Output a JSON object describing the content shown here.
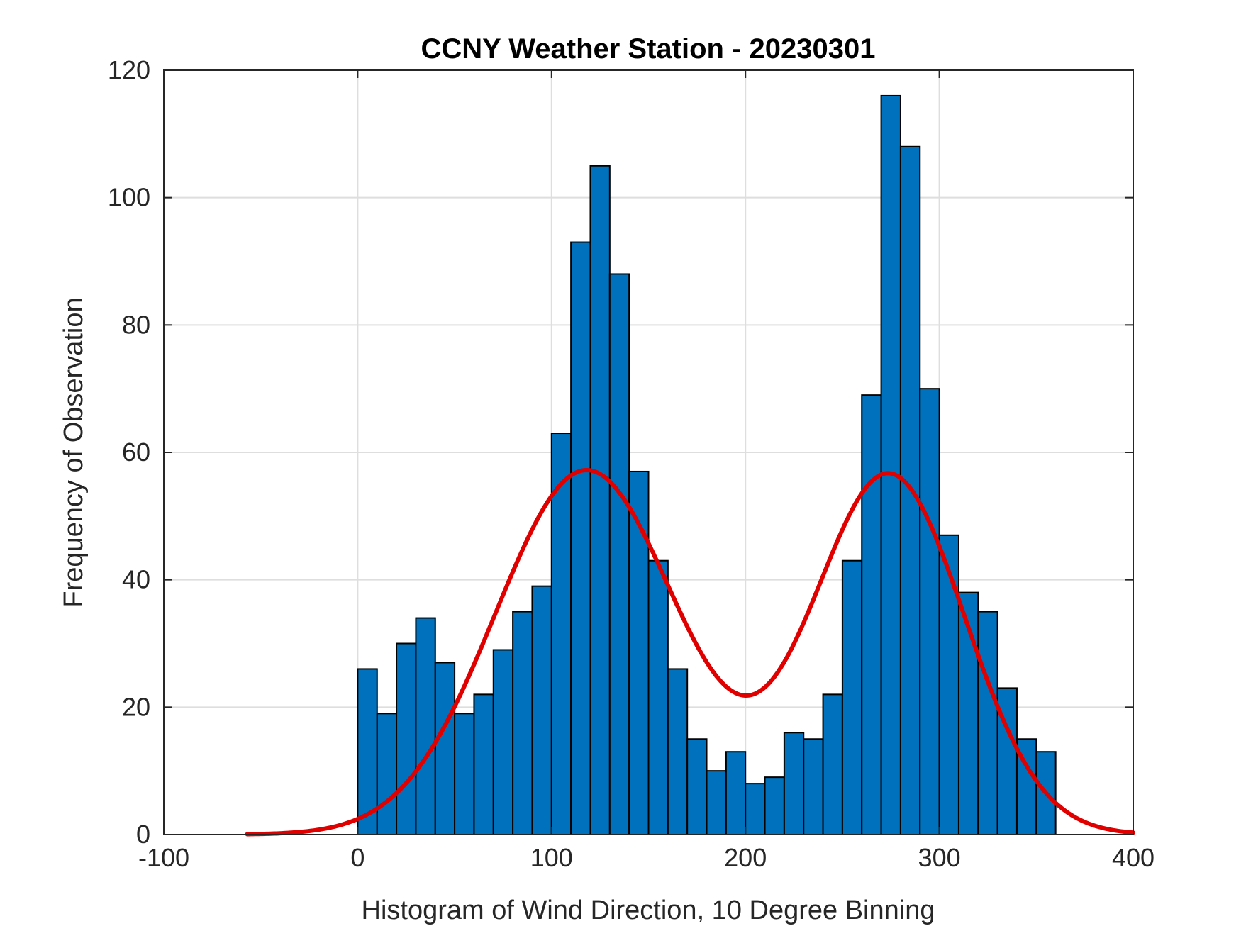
{
  "chart_data": {
    "type": "bar",
    "title": "CCNY Weather Station - 20230301",
    "xlabel": "Histogram of Wind Direction, 10 Degree Binning",
    "ylabel": "Frequency of Observation",
    "xlim": [
      -100,
      400
    ],
    "ylim": [
      0,
      120
    ],
    "xticks": [
      -100,
      0,
      100,
      200,
      300,
      400
    ],
    "xtick_labels": [
      "-100",
      "0",
      "100",
      "200",
      "300",
      "400"
    ],
    "yticks": [
      0,
      20,
      40,
      60,
      80,
      100,
      120
    ],
    "ytick_labels": [
      "0",
      "20",
      "40",
      "60",
      "80",
      "100",
      "120"
    ],
    "grid": true,
    "bin_width": 10,
    "bin_edges_start": 0,
    "values": [
      26,
      19,
      30,
      34,
      27,
      19,
      22,
      29,
      35,
      39,
      63,
      93,
      105,
      88,
      57,
      43,
      26,
      15,
      10,
      13,
      8,
      9,
      16,
      15,
      22,
      43,
      69,
      116,
      108,
      70,
      47,
      38,
      35,
      23,
      15,
      13
    ],
    "bar_color": "#0072BD",
    "bar_edge_color": "#000000",
    "fit_curve": {
      "name": "fit",
      "color": "#E00000",
      "type": "two-gaussian mixture",
      "components": [
        {
          "mean": 118,
          "sigma": 47,
          "amplitude": 57.2
        },
        {
          "mean": 274,
          "sigma": 39,
          "amplitude": 56.5
        }
      ],
      "x_range": [
        -57,
        400
      ]
    }
  }
}
